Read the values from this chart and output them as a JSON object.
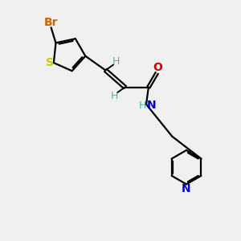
{
  "bg_color": "#f0f0f0",
  "bond_color": "#000000",
  "S_color": "#cccc00",
  "Br_color": "#cc6600",
  "N_color": "#0000cc",
  "O_color": "#cc0000",
  "H_color": "#5aacac",
  "line_width": 1.6,
  "figsize": [
    3.0,
    3.0
  ],
  "dpi": 100,
  "xlim": [
    0.0,
    10.0
  ],
  "ylim": [
    0.0,
    10.0
  ]
}
